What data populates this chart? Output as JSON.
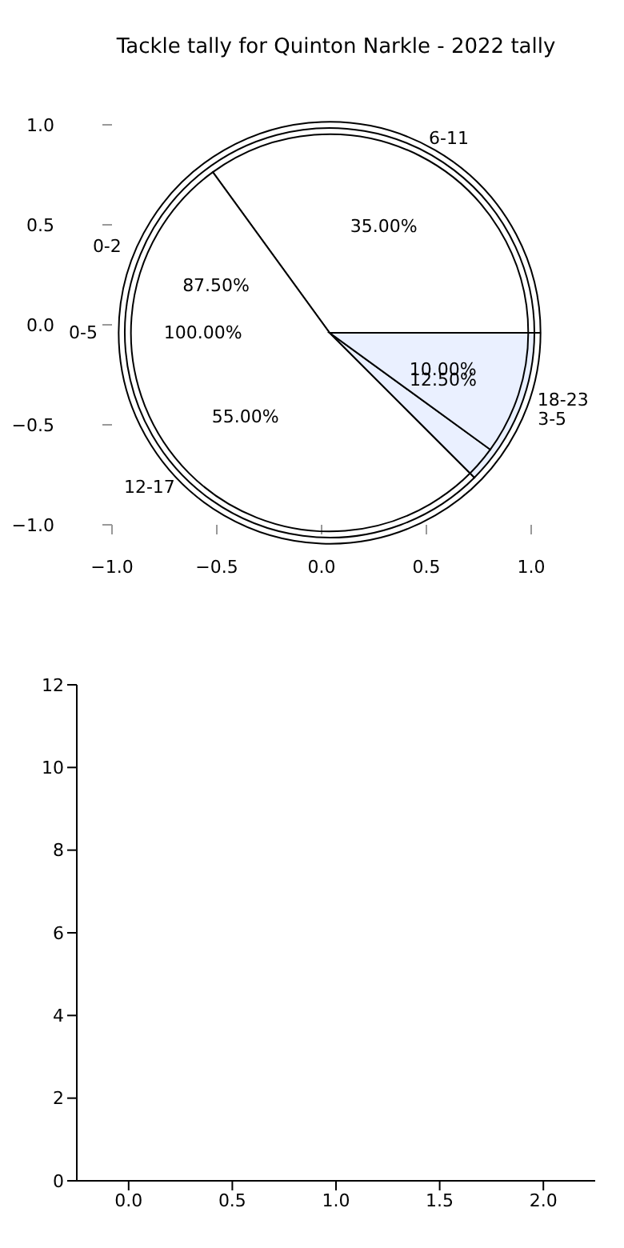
{
  "chart_data": [
    {
      "type": "scatter",
      "title": "Tackle tally for Quinton Narkle - 2022 tally",
      "xlim": [
        -1,
        1
      ],
      "xticks": [
        {
          "value": -1,
          "label": "−1.0"
        },
        {
          "value": -0.5,
          "label": "−0.5"
        },
        {
          "value": 0,
          "label": "0.0"
        },
        {
          "value": 0.5,
          "label": "0.5"
        },
        {
          "value": 1,
          "label": "1.0"
        }
      ],
      "ylim": [
        -1,
        1
      ],
      "yticks": [
        {
          "value": -1,
          "label": "−1.0"
        },
        {
          "value": -0.5,
          "label": "−0.5"
        },
        {
          "value": 0,
          "label": "0.0"
        },
        {
          "value": 0.5,
          "label": "0.5"
        },
        {
          "value": 1,
          "label": "1.0"
        }
      ]
    },
    {
      "type": "pie",
      "categories": [
        "0-5"
      ],
      "values": [
        100
      ],
      "colors": [
        "#ffffff"
      ],
      "value_labels": [
        "100.00%"
      ]
    },
    {
      "type": "pie",
      "categories": [
        "0-2",
        "3-5"
      ],
      "values": [
        87.5,
        12.5
      ],
      "colors": [
        "#ffffff",
        "#eaf0ff"
      ],
      "value_labels": [
        "87.50%",
        "12.50%"
      ]
    },
    {
      "type": "pie",
      "categories": [
        "6-11",
        "12-17",
        "18-23"
      ],
      "values": [
        35,
        55,
        10
      ],
      "colors": [
        "#ffffff",
        "#ffffff",
        "#ffffff"
      ],
      "value_labels": [
        "35.00%",
        "55.00%",
        "10.00%"
      ]
    },
    {
      "type": "scatter",
      "xlim": [
        -0.25,
        2.25
      ],
      "xticks": [
        {
          "value": 0,
          "label": "0.0"
        },
        {
          "value": 0.5,
          "label": "0.5"
        },
        {
          "value": 1,
          "label": "1.0"
        },
        {
          "value": 1.5,
          "label": "1.5"
        },
        {
          "value": 2,
          "label": "2.0"
        }
      ],
      "ylim": [
        0,
        12
      ],
      "yticks": [
        0,
        2,
        4,
        6,
        8,
        10,
        12
      ]
    }
  ]
}
